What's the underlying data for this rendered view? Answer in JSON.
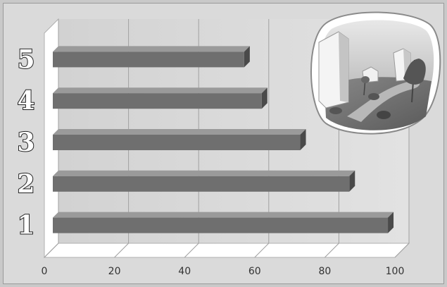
{
  "chart_data": {
    "type": "bar",
    "orientation": "horizontal",
    "categories": [
      "1",
      "2",
      "3",
      "4",
      "5"
    ],
    "values": [
      98,
      87,
      73,
      62,
      57
    ],
    "xlim": [
      0,
      100
    ],
    "x_ticks": [
      "0",
      "20",
      "40",
      "60",
      "80",
      "100"
    ],
    "grid": true,
    "title": "",
    "xlabel": "",
    "ylabel": ""
  },
  "colors": {
    "background": "#dadada",
    "plot_floor": "#ffffff",
    "bar_front": "#6f6f6f",
    "bar_top": "#9a9a9a",
    "bar_end": "#4a4a4a",
    "grid": "#a0a0a0"
  },
  "decoration": {
    "icon": "city-park-illustration-icon"
  }
}
